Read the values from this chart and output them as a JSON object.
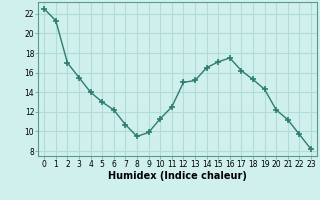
{
  "x": [
    0,
    1,
    2,
    3,
    4,
    5,
    6,
    7,
    8,
    9,
    10,
    11,
    12,
    13,
    14,
    15,
    16,
    17,
    18,
    19,
    20,
    21,
    22,
    23
  ],
  "y": [
    22.5,
    21.3,
    17.0,
    15.5,
    14.0,
    13.0,
    12.2,
    10.7,
    9.5,
    9.9,
    11.3,
    12.5,
    15.0,
    15.2,
    16.5,
    17.1,
    17.5,
    16.2,
    15.3,
    14.3,
    12.2,
    11.2,
    9.7,
    8.2
  ],
  "line_color": "#2d7d6e",
  "marker": "+",
  "marker_size": 4,
  "marker_lw": 1.2,
  "bg_color": "#cff0ec",
  "grid_color": "#b0ddd8",
  "xlabel": "Humidex (Indice chaleur)",
  "ylabel_ticks": [
    8,
    10,
    12,
    14,
    16,
    18,
    20,
    22
  ],
  "xlim": [
    -0.5,
    23.5
  ],
  "ylim": [
    7.5,
    23.2
  ],
  "xticks": [
    0,
    1,
    2,
    3,
    4,
    5,
    6,
    7,
    8,
    9,
    10,
    11,
    12,
    13,
    14,
    15,
    16,
    17,
    18,
    19,
    20,
    21,
    22,
    23
  ],
  "tick_fontsize": 5.5,
  "xlabel_fontsize": 7
}
